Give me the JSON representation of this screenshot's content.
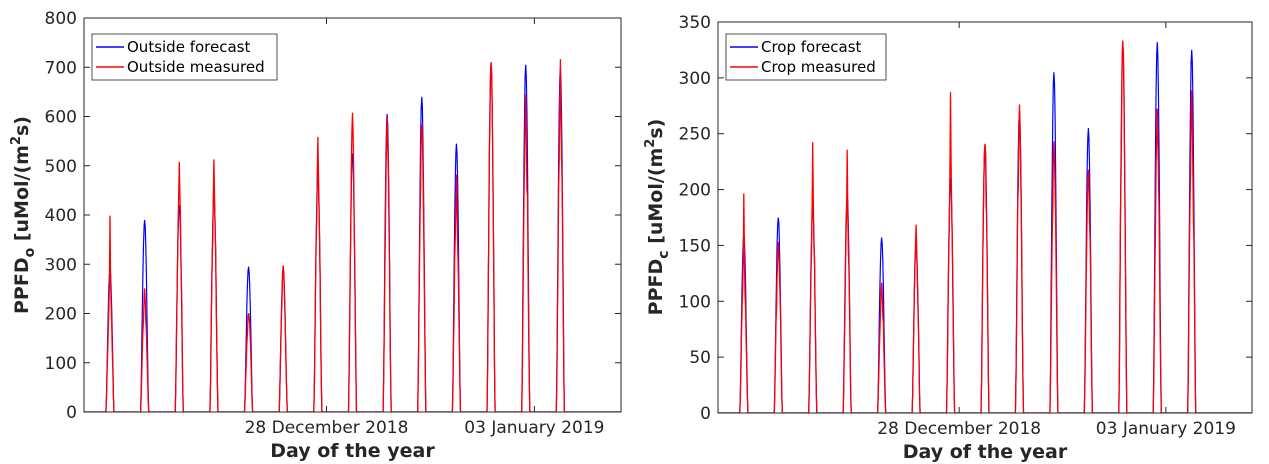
{
  "colors": {
    "forecast": "#0000ff",
    "measured": "#ff0000",
    "axis": "#262626"
  },
  "chart_data": [
    {
      "type": "line",
      "xlabel": "Day of the year",
      "ylabel": {
        "prefix": "PPFD",
        "sub": "o",
        "unit": " [uMol/(m",
        "sup": "2",
        "unit_end": "s)"
      },
      "ylim": [
        0,
        800
      ],
      "yticks": [
        0,
        100,
        200,
        300,
        400,
        500,
        600,
        700,
        800
      ],
      "xlim": [
        0,
        15.5
      ],
      "xtick_labels": [
        {
          "x": 7,
          "label": "28 December 2018"
        },
        {
          "x": 13,
          "label": "03 January 2019"
        }
      ],
      "legend": {
        "placement": "top-left"
      },
      "series": [
        {
          "name": "Outside forecast",
          "color": "#0000ff"
        },
        {
          "name": "Outside measured",
          "color": "#ff0000"
        }
      ],
      "days": [
        {
          "f": 290,
          "m": 430,
          "m_base": 240
        },
        {
          "f": 390,
          "m": 265,
          "m_base": 225
        },
        {
          "f": 420,
          "m": 535,
          "m_base": 430
        },
        {
          "f": 440,
          "m": 570,
          "m_base": 420
        },
        {
          "f": 295,
          "m": 205,
          "m_base": 190
        },
        {
          "f": 290,
          "m": 305,
          "m_base": 280
        },
        {
          "f": 480,
          "m": 615,
          "m_base": 470
        },
        {
          "f": 525,
          "m": 620,
          "m_base": 560
        },
        {
          "f": 605,
          "m": 615,
          "m_base": 540
        },
        {
          "f": 640,
          "m": 595,
          "m_base": 560
        },
        {
          "f": 545,
          "m": 505,
          "m_base": 400
        },
        {
          "f": 710,
          "m": 715,
          "m_base": 680
        },
        {
          "f": 705,
          "m": 685,
          "m_base": 560
        },
        {
          "f": 700,
          "m": 725,
          "m_base": 600
        }
      ]
    },
    {
      "type": "line",
      "xlabel": "Day of the year",
      "ylabel": {
        "prefix": "PPFD",
        "sub": "c",
        "unit": " [uMol/(m",
        "sup": "2",
        "unit_end": "s)"
      },
      "ylim": [
        0,
        350
      ],
      "yticks": [
        0,
        50,
        100,
        150,
        200,
        250,
        300,
        350
      ],
      "xlim": [
        0,
        15.5
      ],
      "xtick_labels": [
        {
          "x": 7,
          "label": "28 December 2018"
        },
        {
          "x": 13,
          "label": "03 January 2019"
        }
      ],
      "legend": {
        "placement": "top-left"
      },
      "series": [
        {
          "name": "Crop forecast",
          "color": "#0000ff"
        },
        {
          "name": "Crop measured",
          "color": "#ff0000"
        }
      ],
      "days": [
        {
          "f": 160,
          "m": 215,
          "m_base": 130
        },
        {
          "f": 175,
          "m": 155,
          "m_base": 140
        },
        {
          "f": 185,
          "m": 268,
          "m_base": 180
        },
        {
          "f": 195,
          "m": 250,
          "m_base": 170
        },
        {
          "f": 157,
          "m": 120,
          "m_base": 105
        },
        {
          "f": 150,
          "m": 175,
          "m_base": 145
        },
        {
          "f": 210,
          "m": 300,
          "m_base": 215
        },
        {
          "f": 240,
          "m": 248,
          "m_base": 230
        },
        {
          "f": 270,
          "m": 292,
          "m_base": 250
        },
        {
          "f": 305,
          "m": 250,
          "m_base": 225
        },
        {
          "f": 255,
          "m": 225,
          "m_base": 205
        },
        {
          "f": 330,
          "m": 335,
          "m_base": 320
        },
        {
          "f": 332,
          "m": 285,
          "m_base": 240
        },
        {
          "f": 325,
          "m": 300,
          "m_base": 255
        }
      ]
    }
  ]
}
